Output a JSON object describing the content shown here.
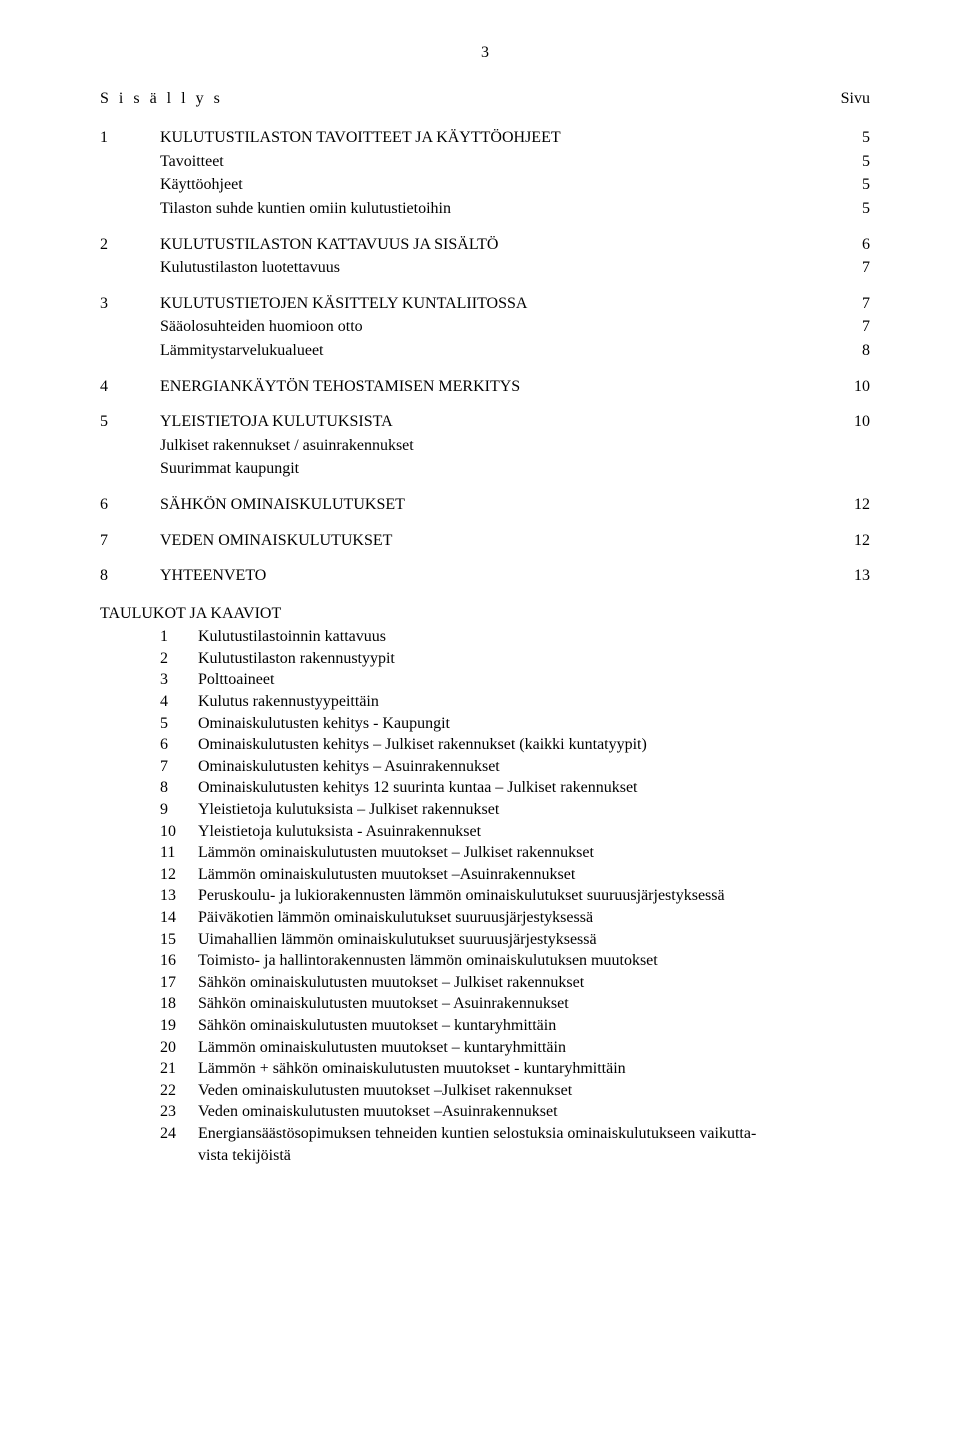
{
  "page_number": "3",
  "toc_header_left": "S i s ä l l y s",
  "toc_header_right": "Sivu",
  "sections": [
    {
      "num": "1",
      "title": "KULUTUSTILASTON TAVOITTEET JA KÄYTTÖOHJEET",
      "page": "5",
      "sub": [
        {
          "title": "Tavoitteet",
          "page": "5"
        },
        {
          "title": "Käyttöohjeet",
          "page": "5"
        },
        {
          "title": "Tilaston suhde kuntien omiin kulutustietoihin",
          "page": "5"
        }
      ]
    },
    {
      "num": "2",
      "title": "KULUTUSTILASTON KATTAVUUS JA SISÄLTÖ",
      "page": "6",
      "sub": [
        {
          "title": "Kulutustilaston luotettavuus",
          "page": "7"
        }
      ]
    },
    {
      "num": "3",
      "title": "KULUTUSTIETOJEN KÄSITTELY KUNTALIITOSSA",
      "page": "7",
      "sub": [
        {
          "title": "Sääolosuhteiden huomioon otto",
          "page": "7"
        },
        {
          "title": "Lämmitystarvelukualueet",
          "page": "8"
        }
      ]
    },
    {
      "num": "4",
      "title": "ENERGIANKÄYTÖN TEHOSTAMISEN MERKITYS",
      "page": "10",
      "sub": []
    },
    {
      "num": "5",
      "title": "YLEISTIETOJA KULUTUKSISTA",
      "page": "10",
      "sub": [
        {
          "title": "Julkiset rakennukset / asuinrakennukset",
          "page": ""
        },
        {
          "title": "Suurimmat kaupungit",
          "page": ""
        }
      ]
    },
    {
      "num": "6",
      "title": "SÄHKÖN OMINAISKULUTUKSET",
      "page": "12",
      "sub": []
    },
    {
      "num": "7",
      "title": "VEDEN OMINAISKULUTUKSET",
      "page": "12",
      "sub": []
    },
    {
      "num": "8",
      "title": "YHTEENVETO",
      "page": "13",
      "sub": []
    }
  ],
  "list_header": "TAULUKOT JA KAAVIOT",
  "list": [
    {
      "n": "1",
      "t": "Kulutustilastoinnin kattavuus"
    },
    {
      "n": "2",
      "t": "Kulutustilaston rakennustyypit"
    },
    {
      "n": "3",
      "t": "Polttoaineet"
    },
    {
      "n": "4",
      "t": "Kulutus rakennustyypeittäin"
    },
    {
      "n": "5",
      "t": "Ominaiskulutusten kehitys - Kaupungit"
    },
    {
      "n": "6",
      "t": "Ominaiskulutusten kehitys – Julkiset rakennukset (kaikki kuntatyypit)"
    },
    {
      "n": "7",
      "t": "Ominaiskulutusten kehitys – Asuinrakennukset"
    },
    {
      "n": "8",
      "t": "Ominaiskulutusten kehitys 12 suurinta kuntaa – Julkiset rakennukset"
    },
    {
      "n": "9",
      "t": "Yleistietoja kulutuksista – Julkiset rakennukset"
    },
    {
      "n": "10",
      "t": "Yleistietoja kulutuksista - Asuinrakennukset"
    },
    {
      "n": "11",
      "t": "Lämmön ominaiskulutusten muutokset – Julkiset rakennukset"
    },
    {
      "n": "12",
      "t": "Lämmön ominaiskulutusten muutokset –Asuinrakennukset"
    },
    {
      "n": "13",
      "t": "Peruskoulu- ja lukiorakennusten lämmön ominaiskulutukset suuruusjärjestyksessä"
    },
    {
      "n": "14",
      "t": "Päiväkotien lämmön ominaiskulutukset suuruusjärjestyksessä"
    },
    {
      "n": "15",
      "t": "Uimahallien lämmön ominaiskulutukset suuruusjärjestyksessä"
    },
    {
      "n": "16",
      "t": "Toimisto- ja hallintorakennusten lämmön ominaiskulutuksen muutokset"
    },
    {
      "n": "17",
      "t": "Sähkön ominaiskulutusten muutokset – Julkiset rakennukset"
    },
    {
      "n": "18",
      "t": "Sähkön ominaiskulutusten muutokset – Asuinrakennukset"
    },
    {
      "n": "19",
      "t": "Sähkön ominaiskulutusten muutokset – kuntaryhmittäin"
    },
    {
      "n": "20",
      "t": "Lämmön ominaiskulutusten muutokset – kuntaryhmittäin"
    },
    {
      "n": "21",
      "t": "Lämmön + sähkön ominaiskulutusten muutokset - kuntaryhmittäin"
    },
    {
      "n": "22",
      "t": "Veden ominaiskulutusten muutokset –Julkiset rakennukset"
    },
    {
      "n": "23",
      "t": "Veden ominaiskulutusten muutokset –Asuinrakennukset"
    },
    {
      "n": "24",
      "t": "Energiansäästösopimuksen tehneiden kuntien selostuksia ominaiskulutukseen vaikutta-"
    }
  ],
  "list_cont": "vista tekijöistä"
}
